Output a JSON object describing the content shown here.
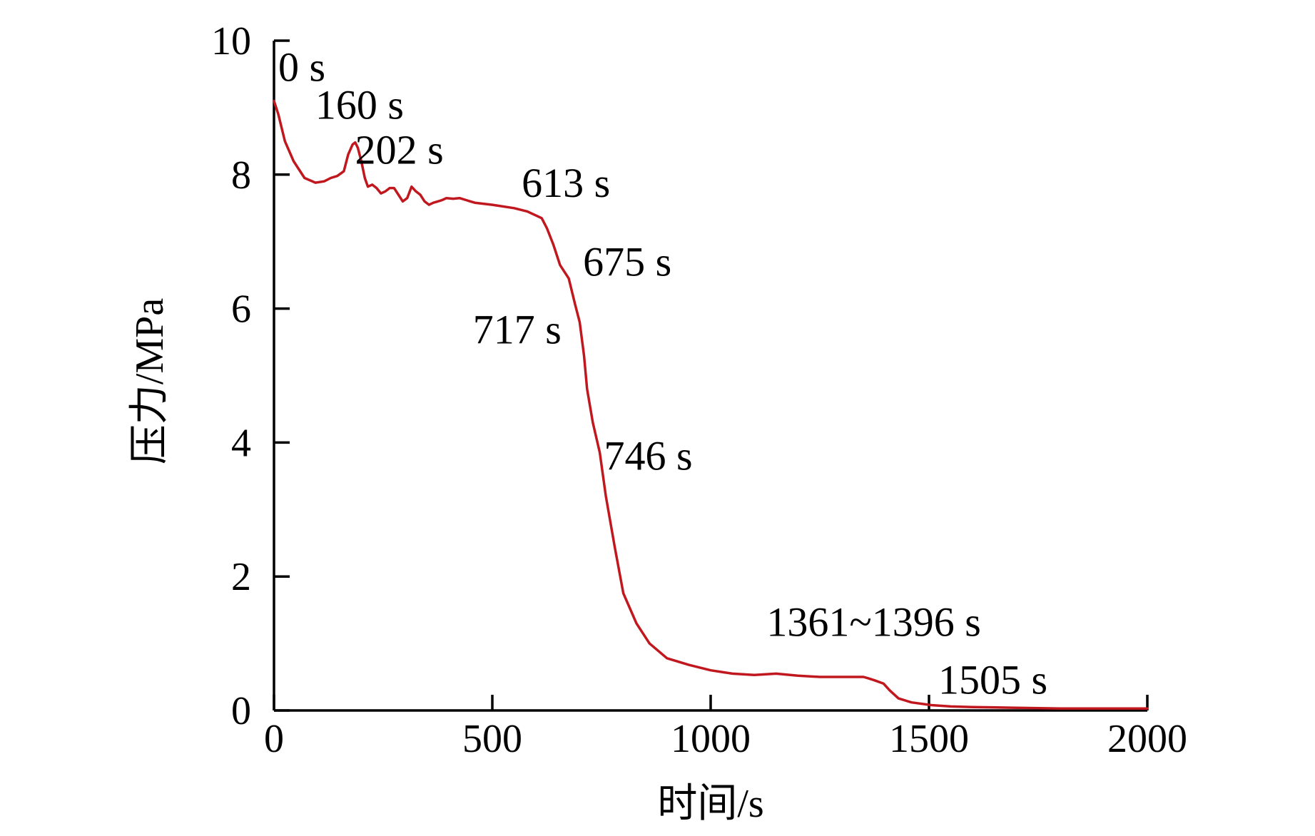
{
  "chart_data": {
    "type": "line",
    "xlabel": "时间/s",
    "ylabel": "压力/MPa",
    "xlim": [
      0,
      2000
    ],
    "ylim": [
      0,
      10
    ],
    "xticks": [
      0,
      500,
      1000,
      1500,
      2000
    ],
    "yticks": [
      0,
      2,
      4,
      6,
      8,
      10
    ],
    "grid": false,
    "line_color": "#c0181e",
    "series": [
      {
        "x": [
          0,
          10,
          25,
          45,
          70,
          95,
          115,
          130,
          145,
          160,
          170,
          180,
          186,
          192,
          200,
          208,
          215,
          225,
          235,
          245,
          255,
          265,
          275,
          285,
          295,
          305,
          315,
          325,
          335,
          345,
          355,
          365,
          375,
          385,
          395,
          410,
          425,
          440,
          450,
          460,
          500,
          550,
          580,
          613,
          625,
          640,
          655,
          675,
          690,
          700,
          710,
          717,
          730,
          746,
          760,
          780,
          800,
          830,
          860,
          900,
          950,
          1000,
          1050,
          1100,
          1150,
          1200,
          1250,
          1300,
          1350,
          1361,
          1375,
          1396,
          1410,
          1430,
          1460,
          1505,
          1550,
          1600,
          1700,
          1800,
          1900,
          2000
        ],
        "y": [
          9.1,
          8.9,
          8.5,
          8.2,
          7.95,
          7.88,
          7.9,
          7.95,
          7.98,
          8.05,
          8.3,
          8.45,
          8.48,
          8.4,
          8.2,
          7.95,
          7.82,
          7.85,
          7.8,
          7.72,
          7.75,
          7.8,
          7.8,
          7.7,
          7.6,
          7.65,
          7.82,
          7.75,
          7.7,
          7.6,
          7.55,
          7.58,
          7.6,
          7.62,
          7.65,
          7.64,
          7.65,
          7.62,
          7.6,
          7.58,
          7.55,
          7.5,
          7.45,
          7.35,
          7.2,
          6.95,
          6.65,
          6.45,
          6.05,
          5.8,
          5.3,
          4.8,
          4.3,
          3.85,
          3.2,
          2.45,
          1.75,
          1.3,
          1.0,
          0.78,
          0.68,
          0.6,
          0.55,
          0.53,
          0.55,
          0.52,
          0.5,
          0.5,
          0.5,
          0.48,
          0.45,
          0.4,
          0.3,
          0.18,
          0.12,
          0.08,
          0.06,
          0.05,
          0.04,
          0.03,
          0.03,
          0.03
        ]
      }
    ],
    "annotations": [
      {
        "text": "0 s",
        "x": 0,
        "y": 9.1
      },
      {
        "text": "160 s",
        "x": 160,
        "y": 8.45
      },
      {
        "text": "202 s",
        "x": 202,
        "y": 7.95
      },
      {
        "text": "613 s",
        "x": 613,
        "y": 7.35
      },
      {
        "text": "675 s",
        "x": 675,
        "y": 6.45
      },
      {
        "text": "717 s",
        "x": 717,
        "y": 4.8
      },
      {
        "text": "746 s",
        "x": 746,
        "y": 3.85
      },
      {
        "text": "1361~1396 s",
        "x": 1396,
        "y": 0.45
      },
      {
        "text": "1505 s",
        "x": 1505,
        "y": 0.08
      }
    ]
  }
}
